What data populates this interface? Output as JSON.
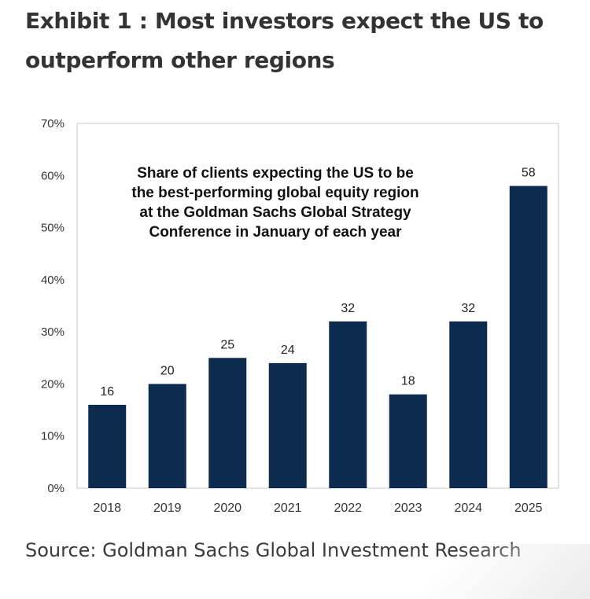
{
  "title": "Exhibit 1 : Most investors expect the US to outperform other regions",
  "source": "Source: Goldman Sachs Global Investment Research",
  "colors": {
    "bar": "#0d2b4f",
    "title": "#333333",
    "axis": "#333333"
  },
  "chart_data": {
    "type": "bar",
    "annotation": "Share of clients expecting the US to be the best-performing global equity region at the Goldman Sachs Global Strategy Conference in January of each year",
    "annotation_lines": [
      "Share of clients expecting the US to be",
      "the best-performing global equity region",
      "at the Goldman Sachs Global Strategy",
      "Conference in January of each year"
    ],
    "categories": [
      "2018",
      "2019",
      "2020",
      "2021",
      "2022",
      "2023",
      "2024",
      "2025"
    ],
    "values": [
      16,
      20,
      25,
      24,
      32,
      18,
      32,
      58
    ],
    "ylim": [
      0,
      70
    ],
    "yticks": [
      0,
      10,
      20,
      30,
      40,
      50,
      60,
      70
    ],
    "ytick_labels": [
      "0%",
      "10%",
      "20%",
      "30%",
      "40%",
      "50%",
      "60%",
      "70%"
    ],
    "grid": false,
    "xlabel": "",
    "ylabel": ""
  }
}
